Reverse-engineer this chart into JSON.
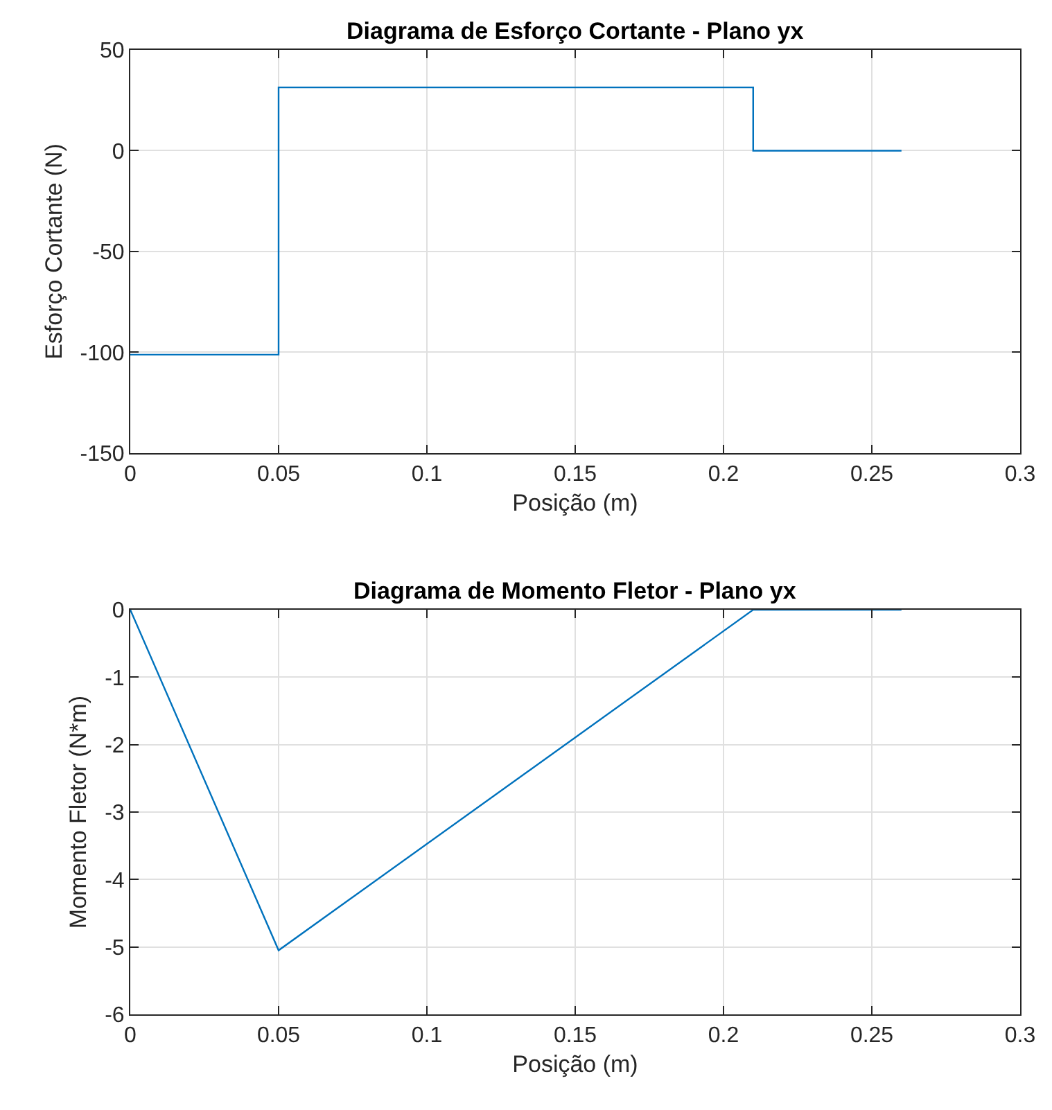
{
  "chart_data": [
    {
      "type": "line",
      "title": "Diagrama de Esforço Cortante - Plano yx",
      "xlabel": "Posição (m)",
      "ylabel": "Esforço Cortante (N)",
      "series": [
        {
          "color": "#0072bd",
          "x": [
            0,
            0.05,
            0.05,
            0.21,
            0.21,
            0.26
          ],
          "values": [
            -101.2,
            -101.2,
            31.4,
            31.4,
            0,
            0
          ]
        }
      ],
      "xlim": [
        0,
        0.3
      ],
      "xticks": [
        0,
        0.05,
        0.1,
        0.15,
        0.2,
        0.25,
        0.3
      ],
      "ylim": [
        -150,
        50
      ],
      "yticks": [
        -150,
        -100,
        -50,
        0,
        50
      ],
      "grid": true,
      "marker": "none",
      "line_style": "solid"
    },
    {
      "type": "line",
      "title": "Diagrama de Momento Fletor - Plano yx",
      "xlabel": "Posição (m)",
      "ylabel": "Momento Fletor (N*m)",
      "series": [
        {
          "color": "#0072bd",
          "x": [
            0,
            0.05,
            0.21,
            0.26
          ],
          "values": [
            0,
            -5.05,
            0,
            0
          ]
        }
      ],
      "xlim": [
        0,
        0.3
      ],
      "xticks": [
        0,
        0.05,
        0.1,
        0.15,
        0.2,
        0.25,
        0.3
      ],
      "ylim": [
        -6,
        0
      ],
      "yticks": [
        -6,
        -5,
        -4,
        -3,
        -2,
        -1,
        0
      ],
      "grid": true,
      "marker": "none",
      "line_style": "solid"
    }
  ]
}
